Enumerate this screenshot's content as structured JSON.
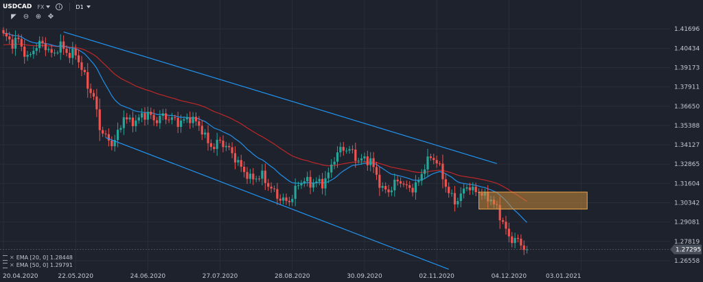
{
  "toolbar": {
    "symbol": "USDCAD",
    "exchange": "FX",
    "timeframe": "D1",
    "tools": [
      "magnet-icon",
      "zoom-out-icon",
      "zoom-in-icon",
      "move-icon"
    ]
  },
  "legend": [
    {
      "label": "EMA [20, 0] 1.28448",
      "color": "#2196f3"
    },
    {
      "label": "EMA [50, 0] 1.29791",
      "color": "#c62828"
    }
  ],
  "colors": {
    "background": "#1e222d",
    "up": "#26a69a",
    "down": "#ef5350",
    "ema20": "#2196f3",
    "ema50": "#c62828",
    "channel": "#2196f3",
    "zone_fill": "#c88a3a",
    "zone_border": "#f0a845",
    "grid": "#2a2e39"
  },
  "chart_data": {
    "type": "candlestick",
    "symbol": "USDCAD",
    "timeframe": "D1",
    "ylim": [
      1.2593,
      1.4233
    ],
    "y_ticks": [
      "1.41696",
      "1.40434",
      "1.39173",
      "1.37911",
      "1.36650",
      "1.35388",
      "1.34127",
      "1.32865",
      "1.31604",
      "1.30342",
      "1.29081",
      "1.27819",
      "1.26558"
    ],
    "x_ticks": [
      "20.04.2020",
      "22.05.2020",
      "24.06.2020",
      "27.07.2020",
      "28.08.2020",
      "30.09.2020",
      "02.11.2020",
      "04.12.2020",
      "03.01.2021"
    ],
    "x_tick_offsets": [
      0,
      24,
      48,
      72,
      96,
      120,
      144,
      168,
      192
    ],
    "last_price": "1.27295",
    "anchors": [
      [
        0,
        1.413
      ],
      [
        3,
        1.4075
      ],
      [
        5,
        1.41
      ],
      [
        8,
        1.397
      ],
      [
        10,
        1.404
      ],
      [
        13,
        1.408
      ],
      [
        16,
        1.4
      ],
      [
        19,
        1.406
      ],
      [
        22,
        1.4
      ],
      [
        24,
        1.401
      ],
      [
        26,
        1.391
      ],
      [
        28,
        1.38
      ],
      [
        30,
        1.372
      ],
      [
        32,
        1.353
      ],
      [
        34,
        1.346
      ],
      [
        36,
        1.342
      ],
      [
        38,
        1.348
      ],
      [
        40,
        1.36
      ],
      [
        42,
        1.356
      ],
      [
        44,
        1.357
      ],
      [
        46,
        1.36
      ],
      [
        48,
        1.362
      ],
      [
        50,
        1.357
      ],
      [
        53,
        1.36
      ],
      [
        56,
        1.358
      ],
      [
        58,
        1.356
      ],
      [
        60,
        1.357
      ],
      [
        62,
        1.359
      ],
      [
        64,
        1.356
      ],
      [
        66,
        1.351
      ],
      [
        68,
        1.342
      ],
      [
        70,
        1.34
      ],
      [
        72,
        1.344
      ],
      [
        74,
        1.34
      ],
      [
        76,
        1.336
      ],
      [
        78,
        1.329
      ],
      [
        80,
        1.324
      ],
      [
        82,
        1.319
      ],
      [
        84,
        1.32
      ],
      [
        86,
        1.321
      ],
      [
        88,
        1.315
      ],
      [
        90,
        1.31
      ],
      [
        92,
        1.306
      ],
      [
        94,
        1.304
      ],
      [
        96,
        1.307
      ],
      [
        98,
        1.316
      ],
      [
        100,
        1.318
      ],
      [
        102,
        1.316
      ],
      [
        104,
        1.317
      ],
      [
        106,
        1.316
      ],
      [
        108,
        1.322
      ],
      [
        110,
        1.333
      ],
      [
        112,
        1.338
      ],
      [
        114,
        1.339
      ],
      [
        116,
        1.336
      ],
      [
        118,
        1.331
      ],
      [
        120,
        1.332
      ],
      [
        122,
        1.331
      ],
      [
        124,
        1.321
      ],
      [
        126,
        1.312
      ],
      [
        128,
        1.311
      ],
      [
        130,
        1.316
      ],
      [
        132,
        1.318
      ],
      [
        134,
        1.313
      ],
      [
        136,
        1.313
      ],
      [
        138,
        1.317
      ],
      [
        140,
        1.328
      ],
      [
        142,
        1.333
      ],
      [
        144,
        1.331
      ],
      [
        146,
        1.32
      ],
      [
        148,
        1.31
      ],
      [
        150,
        1.304
      ],
      [
        152,
        1.308
      ],
      [
        154,
        1.315
      ],
      [
        156,
        1.311
      ],
      [
        158,
        1.311
      ],
      [
        160,
        1.307
      ],
      [
        162,
        1.306
      ],
      [
        164,
        1.299
      ],
      [
        166,
        1.291
      ],
      [
        168,
        1.28
      ],
      [
        170,
        1.28
      ],
      [
        172,
        1.276
      ],
      [
        174,
        1.273
      ]
    ],
    "channel": {
      "upper": [
        [
          20,
          1.415
        ],
        [
          164,
          1.329
        ]
      ],
      "lower": [
        [
          34,
          1.346
        ],
        [
          148,
          1.26
        ]
      ]
    },
    "zone": {
      "x": [
        158,
        194
      ],
      "y": [
        1.2993,
        1.3104
      ]
    },
    "series": [
      {
        "name": "EMA [20, 0]",
        "period": 20,
        "last": "1.28448"
      },
      {
        "name": "EMA [50, 0]",
        "period": 50,
        "last": "1.29791"
      }
    ]
  }
}
